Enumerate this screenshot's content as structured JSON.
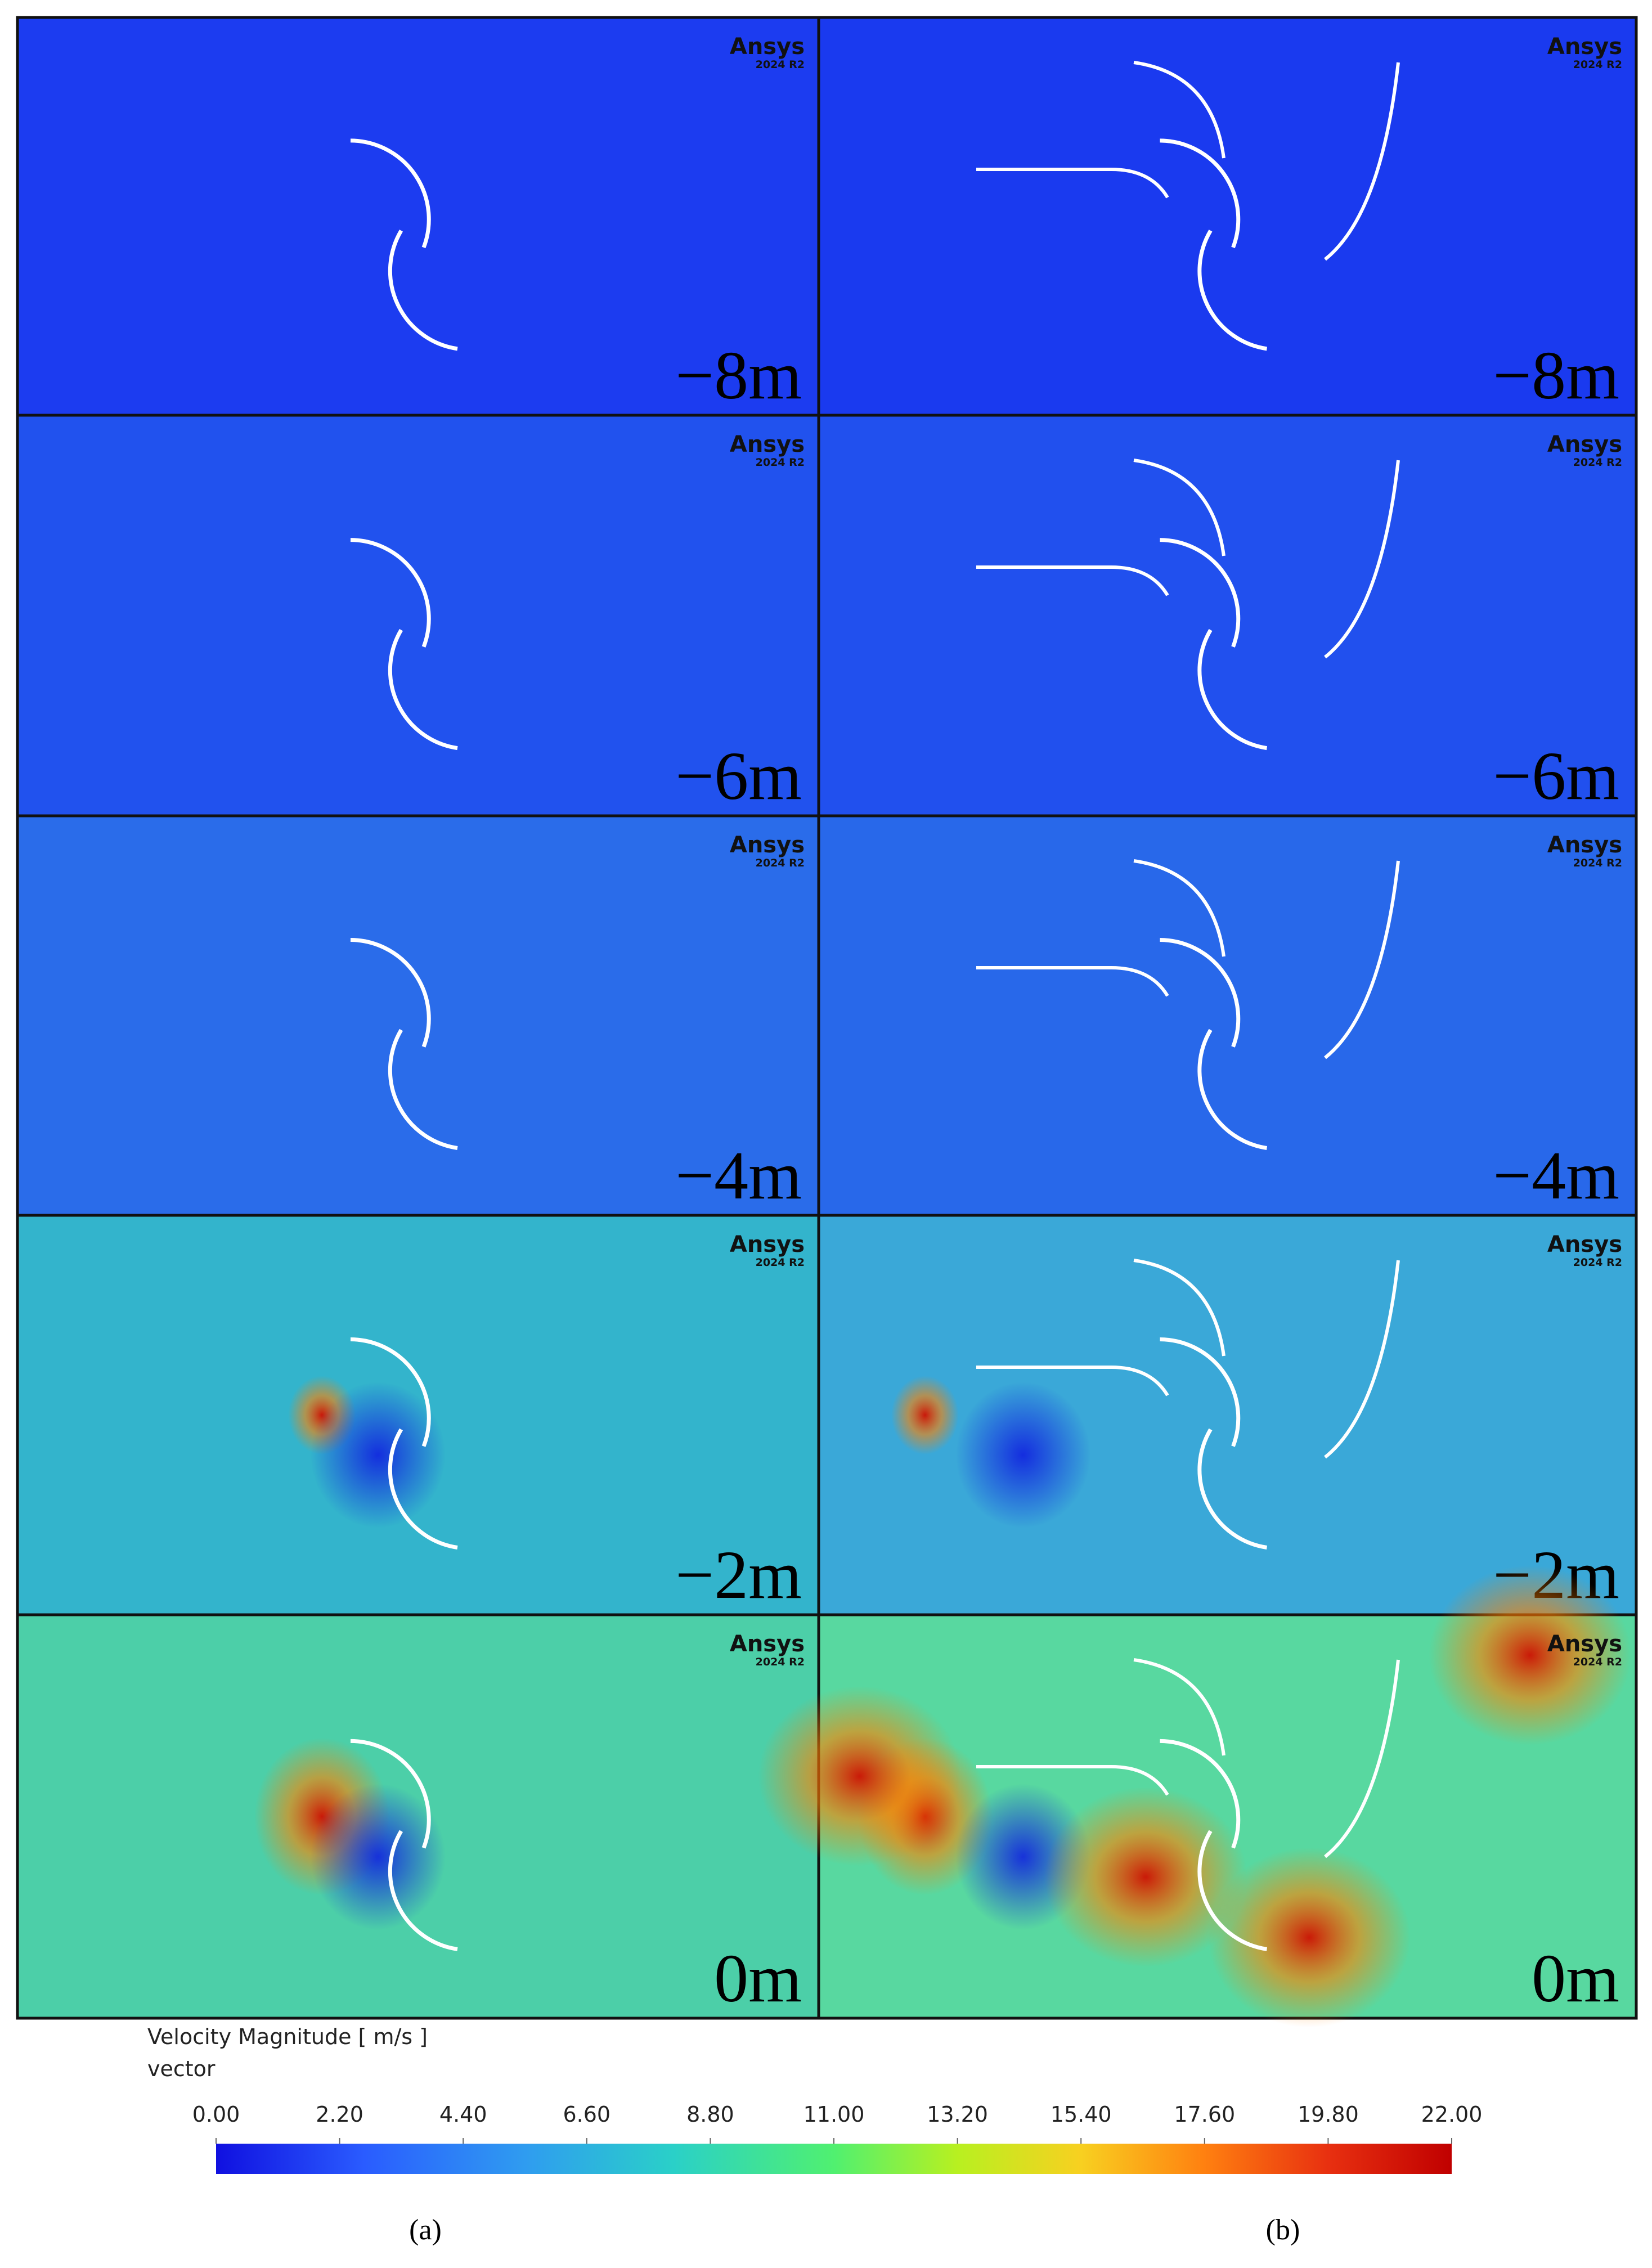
{
  "rows": [
    "−8m",
    "−6m",
    "−4m",
    "−2m",
    "0m"
  ],
  "logo": {
    "name": "Ansys",
    "version": "2024 R2"
  },
  "colorbar": {
    "title": "Velocity Magnitude [ m/s ]",
    "subtitle": "vector",
    "range": [
      0,
      22
    ],
    "ticks": [
      {
        "value": 0,
        "label": "0.00"
      },
      {
        "value": 2.2,
        "label": "2.20"
      },
      {
        "value": 4.4,
        "label": "4.40"
      },
      {
        "value": 6.6,
        "label": "6.60"
      },
      {
        "value": 8.8,
        "label": "8.80"
      },
      {
        "value": 11,
        "label": "11.00"
      },
      {
        "value": 13.2,
        "label": "13.20"
      },
      {
        "value": 15.4,
        "label": "15.40"
      },
      {
        "value": 17.6,
        "label": "17.60"
      },
      {
        "value": 19.8,
        "label": "19.80"
      },
      {
        "value": 22,
        "label": "22.00"
      }
    ]
  },
  "columns": [
    "(a)",
    "(b)"
  ]
}
